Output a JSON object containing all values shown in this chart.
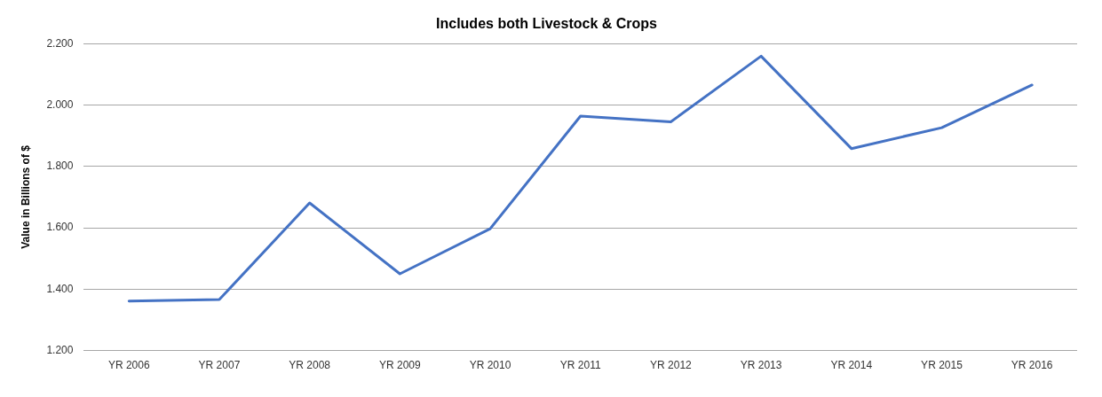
{
  "chart_data": {
    "type": "line",
    "title": "Includes both Livestock & Crops",
    "ylabel": "Value in Billions of $",
    "categories": [
      "YR 2006",
      "YR 2007",
      "YR 2008",
      "YR 2009",
      "YR 2010",
      "YR 2011",
      "YR 2012",
      "YR 2013",
      "YR 2014",
      "YR 2015",
      "YR 2016"
    ],
    "series": [
      {
        "color": "#4472c4",
        "values": [
          1.361,
          1.366,
          1.681,
          1.45,
          1.597,
          1.964,
          1.945,
          2.159,
          1.858,
          1.926,
          2.065
        ]
      }
    ],
    "ylim": [
      1.2,
      2.2
    ],
    "yticks": [
      {
        "value": 1.2,
        "label": "1.200"
      },
      {
        "value": 1.4,
        "label": "1.400"
      },
      {
        "value": 1.6,
        "label": "1.600"
      },
      {
        "value": 1.8,
        "label": "1.800"
      },
      {
        "value": 2.0,
        "label": "2.000"
      },
      {
        "value": 2.2,
        "label": "2.200"
      }
    ],
    "grid": "y",
    "legend": false,
    "marker": "none",
    "line_style": "solid"
  }
}
